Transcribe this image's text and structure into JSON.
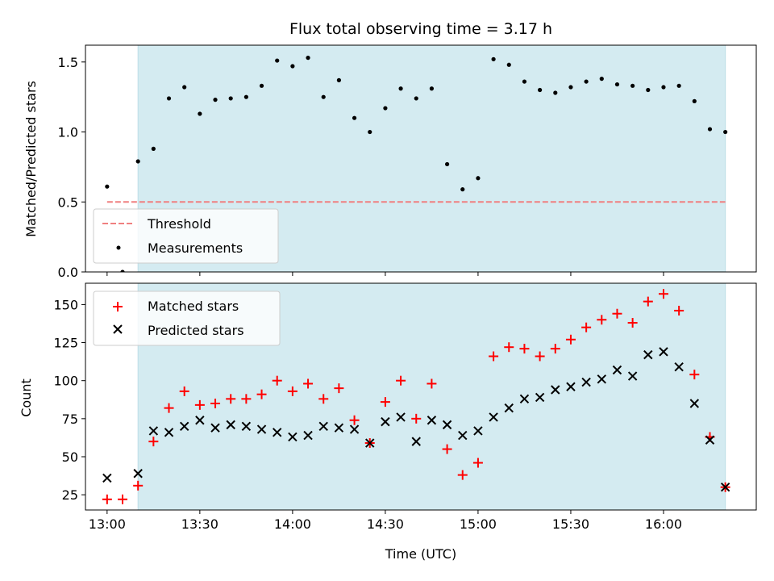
{
  "chart_data": [
    {
      "type": "scatter",
      "title": "Flux total observing time = 3.17 h",
      "ylabel": "Matched/Predicted stars",
      "xlabel": "",
      "x_unit": "time (UTC)",
      "xlim": [
        "12:53",
        "16:30"
      ],
      "ylim": [
        0,
        1.62
      ],
      "yticks": [
        0,
        0.5,
        1.0,
        1.5
      ],
      "ytick_labels": [
        "0.0",
        "0.5",
        "1.0",
        "1.5"
      ],
      "observing_window": [
        "13:10",
        "16:20"
      ],
      "observing_window_color": "#d4ebf1",
      "threshold": {
        "name": "Threshold",
        "value": 0.5,
        "x_range": [
          "13:00",
          "16:20"
        ],
        "color": "#f08080",
        "style": "dashed"
      },
      "series": [
        {
          "name": "Measurements",
          "color": "#000000",
          "marker": "dot",
          "x": [
            "13:00",
            "13:05",
            "13:10",
            "13:15",
            "13:20",
            "13:25",
            "13:30",
            "13:35",
            "13:40",
            "13:45",
            "13:50",
            "13:55",
            "14:00",
            "14:05",
            "14:10",
            "14:15",
            "14:20",
            "14:25",
            "14:30",
            "14:35",
            "14:40",
            "14:45",
            "14:50",
            "14:55",
            "15:00",
            "15:05",
            "15:10",
            "15:15",
            "15:20",
            "15:25",
            "15:30",
            "15:35",
            "15:40",
            "15:45",
            "15:50",
            "15:55",
            "16:00",
            "16:05",
            "16:10",
            "16:15",
            "16:20"
          ],
          "y": [
            0.61,
            0.0,
            0.79,
            0.88,
            1.24,
            1.32,
            1.13,
            1.23,
            1.24,
            1.25,
            1.33,
            1.51,
            1.47,
            1.53,
            1.25,
            1.37,
            1.1,
            1.0,
            1.17,
            1.31,
            1.24,
            1.31,
            0.77,
            0.59,
            0.67,
            1.52,
            1.48,
            1.36,
            1.3,
            1.28,
            1.32,
            1.36,
            1.38,
            1.34,
            1.33,
            1.3,
            1.32,
            1.33,
            1.22,
            1.02,
            1.0
          ]
        }
      ],
      "legend": {
        "placement": "lower-left",
        "entries": [
          "Threshold",
          "Measurements"
        ]
      },
      "grid": false
    },
    {
      "type": "scatter",
      "title": "",
      "ylabel": "Count",
      "xlabel": "Time (UTC)",
      "xlim": [
        "12:53",
        "16:30"
      ],
      "xticks": [
        "13:00",
        "13:30",
        "14:00",
        "14:30",
        "15:00",
        "15:30",
        "16:00"
      ],
      "ylim": [
        15,
        164
      ],
      "yticks": [
        25,
        50,
        75,
        100,
        125,
        150
      ],
      "observing_window": [
        "13:10",
        "16:20"
      ],
      "observing_window_color": "#d4ebf1",
      "series": [
        {
          "name": "Matched stars",
          "color": "#ff0000",
          "marker": "plus",
          "x": [
            "13:00",
            "13:05",
            "13:10",
            "13:15",
            "13:20",
            "13:25",
            "13:30",
            "13:35",
            "13:40",
            "13:45",
            "13:50",
            "13:55",
            "14:00",
            "14:05",
            "14:10",
            "14:15",
            "14:20",
            "14:25",
            "14:30",
            "14:35",
            "14:40",
            "14:45",
            "14:50",
            "14:55",
            "15:00",
            "15:05",
            "15:10",
            "15:15",
            "15:20",
            "15:25",
            "15:30",
            "15:35",
            "15:40",
            "15:45",
            "15:50",
            "15:55",
            "16:00",
            "16:05",
            "16:10",
            "16:15",
            "16:20"
          ],
          "y": [
            22,
            22,
            31,
            60,
            82,
            93,
            84,
            85,
            88,
            88,
            91,
            100,
            93,
            98,
            88,
            95,
            74,
            59,
            86,
            100,
            75,
            98,
            55,
            38,
            46,
            116,
            122,
            121,
            116,
            121,
            127,
            135,
            140,
            144,
            138,
            152,
            157,
            146,
            104,
            63,
            30
          ]
        },
        {
          "name": "Predicted stars",
          "color": "#000000",
          "marker": "x",
          "x": [
            "13:00",
            "13:10",
            "13:15",
            "13:20",
            "13:25",
            "13:30",
            "13:35",
            "13:40",
            "13:45",
            "13:50",
            "13:55",
            "14:00",
            "14:05",
            "14:10",
            "14:15",
            "14:20",
            "14:25",
            "14:30",
            "14:35",
            "14:40",
            "14:45",
            "14:50",
            "14:55",
            "15:00",
            "15:05",
            "15:10",
            "15:15",
            "15:20",
            "15:25",
            "15:30",
            "15:35",
            "15:40",
            "15:45",
            "15:50",
            "15:55",
            "16:00",
            "16:05",
            "16:10",
            "16:15",
            "16:20"
          ],
          "y": [
            36,
            39,
            67,
            66,
            70,
            74,
            69,
            71,
            70,
            68,
            66,
            63,
            64,
            70,
            69,
            68,
            59,
            73,
            76,
            60,
            74,
            71,
            64,
            67,
            76,
            82,
            88,
            89,
            94,
            96,
            99,
            101,
            107,
            103,
            117,
            119,
            109,
            85,
            61,
            30
          ]
        }
      ],
      "legend": {
        "placement": "upper-left",
        "entries": [
          "Matched stars",
          "Predicted stars"
        ]
      },
      "grid": false
    }
  ]
}
